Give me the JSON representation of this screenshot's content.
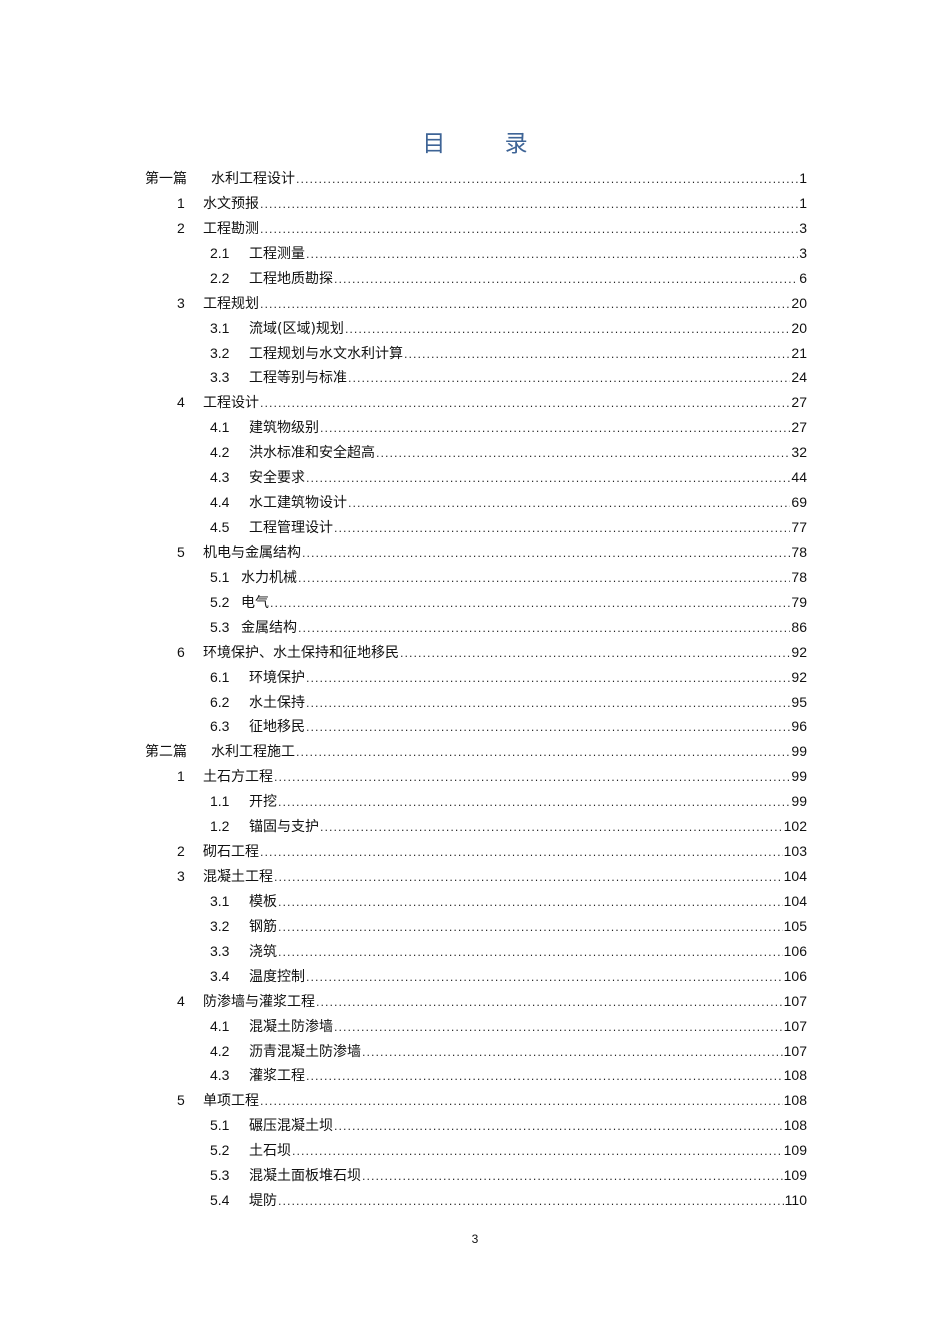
{
  "title": "目 录",
  "page_number": "3",
  "entries": [
    {
      "level": 0,
      "num": "第一篇",
      "label": "水利工程设计",
      "page": "1"
    },
    {
      "level": 1,
      "num": "1",
      "label": "水文预报",
      "page": "1"
    },
    {
      "level": 1,
      "num": "2",
      "label": "工程勘测",
      "page": "3"
    },
    {
      "level": 2,
      "num": "2.1",
      "label": "工程测量",
      "page": "3"
    },
    {
      "level": 2,
      "num": "2.2",
      "label": "工程地质勘探",
      "page": "6"
    },
    {
      "level": 1,
      "num": "3",
      "label": "工程规划",
      "page": "20"
    },
    {
      "level": 2,
      "num": "3.1",
      "label": "流域(区域)规划",
      "page": "20"
    },
    {
      "level": 2,
      "num": "3.2",
      "label": "工程规划与水文水利计算",
      "page": "21"
    },
    {
      "level": 2,
      "num": "3.3",
      "label": "工程等别与标准",
      "page": "24"
    },
    {
      "level": 1,
      "num": "4",
      "label": "工程设计",
      "page": "27"
    },
    {
      "level": 2,
      "num": "4.1",
      "label": "建筑物级别",
      "page": "27"
    },
    {
      "level": 2,
      "num": "4.2",
      "label": "洪水标准和安全超高",
      "page": "32"
    },
    {
      "level": 2,
      "num": "4.3",
      "label": "安全要求",
      "page": "44"
    },
    {
      "level": 2,
      "num": "4.4",
      "label": "水工建筑物设计",
      "page": "69"
    },
    {
      "level": 2,
      "num": "4.5",
      "label": "工程管理设计",
      "page": "77"
    },
    {
      "level": 1,
      "num": "5",
      "label": "机电与金属结构",
      "page": "78"
    },
    {
      "level": 3,
      "num": "5.1",
      "label": "水力机械",
      "page": "78"
    },
    {
      "level": 3,
      "num": "5.2",
      "label": "电气",
      "page": "79"
    },
    {
      "level": 3,
      "num": "5.3",
      "label": "金属结构",
      "page": "86"
    },
    {
      "level": 1,
      "num": "6",
      "label": "环境保护、水土保持和征地移民",
      "page": "92"
    },
    {
      "level": 2,
      "num": "6.1",
      "label": "环境保护",
      "page": "92"
    },
    {
      "level": 2,
      "num": "6.2",
      "label": "水土保持",
      "page": "95"
    },
    {
      "level": 2,
      "num": "6.3",
      "label": "征地移民",
      "page": "96"
    },
    {
      "level": 0,
      "num": "第二篇",
      "label": "水利工程施工",
      "page": "99"
    },
    {
      "level": 1,
      "num": "1",
      "label": "土石方工程",
      "page": "99"
    },
    {
      "level": 2,
      "num": "1.1",
      "label": "开挖",
      "page": "99"
    },
    {
      "level": 2,
      "num": "1.2",
      "label": "锚固与支护",
      "page": "102"
    },
    {
      "level": 1,
      "num": "2",
      "label": "砌石工程",
      "page": "103"
    },
    {
      "level": 1,
      "num": "3",
      "label": "混凝土工程",
      "page": "104"
    },
    {
      "level": 2,
      "num": "3.1",
      "label": "模板",
      "page": "104"
    },
    {
      "level": 2,
      "num": "3.2",
      "label": "钢筋",
      "page": "105"
    },
    {
      "level": 2,
      "num": "3.3",
      "label": "浇筑",
      "page": "106"
    },
    {
      "level": 2,
      "num": "3.4",
      "label": "温度控制",
      "page": "106"
    },
    {
      "level": 1,
      "num": "4",
      "label": "防渗墙与灌浆工程",
      "page": "107"
    },
    {
      "level": 2,
      "num": "4.1",
      "label": "混凝土防渗墙",
      "page": "107"
    },
    {
      "level": 2,
      "num": "4.2",
      "label": "沥青混凝土防渗墙",
      "page": "107"
    },
    {
      "level": 2,
      "num": "4.3",
      "label": "灌浆工程",
      "page": "108"
    },
    {
      "level": 1,
      "num": "5",
      "label": "单项工程",
      "page": "108"
    },
    {
      "level": 2,
      "num": "5.1",
      "label": "碾压混凝土坝",
      "page": "108"
    },
    {
      "level": 2,
      "num": "5.2",
      "label": "土石坝",
      "page": "109"
    },
    {
      "level": 2,
      "num": "5.3",
      "label": "混凝土面板堆石坝",
      "page": "109"
    },
    {
      "level": 2,
      "num": "5.4",
      "label": "堤防",
      "page": "110"
    }
  ]
}
